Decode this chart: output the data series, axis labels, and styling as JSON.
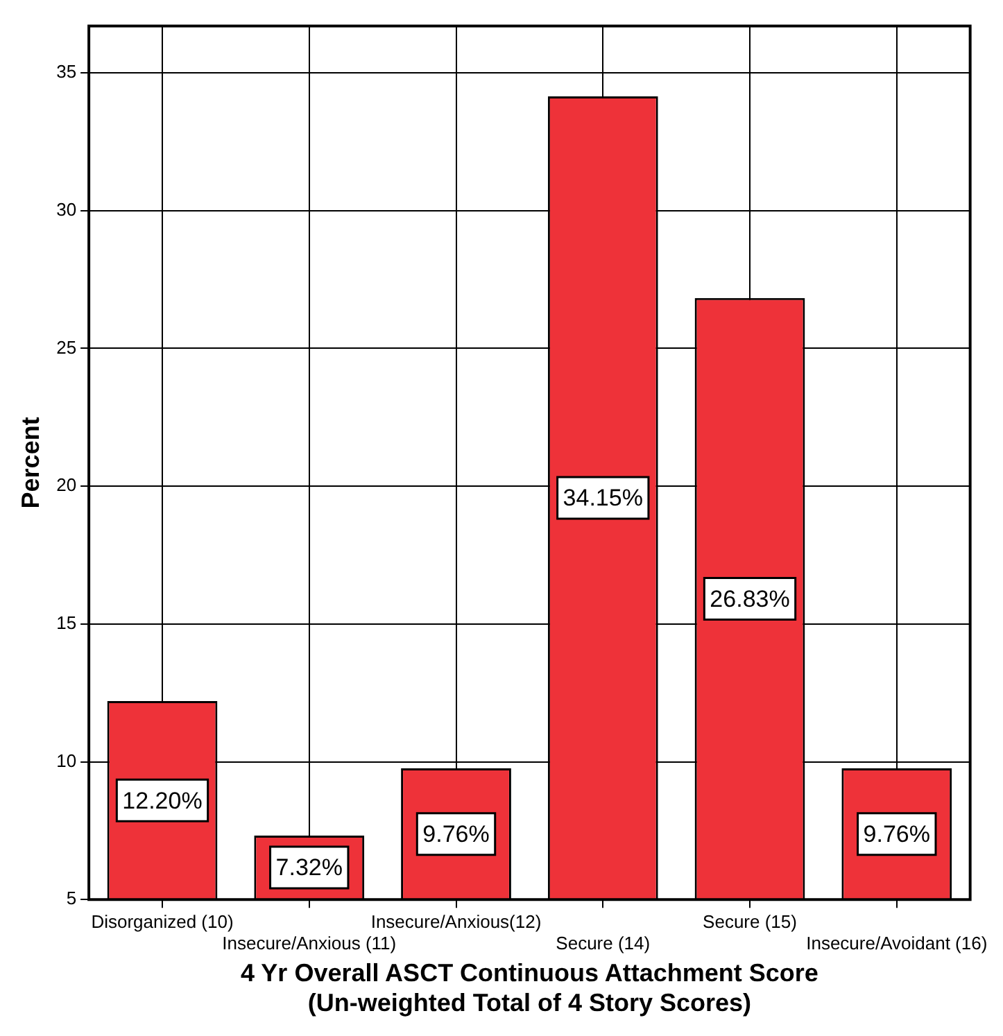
{
  "chart_data": {
    "type": "bar",
    "xlabel": "4 Yr Overall ASCT Continuous Attachment Score\n(Un-weighted Total of 4 Story Scores)",
    "ylabel": "Percent",
    "categories": [
      "Disorganized (10)",
      "Insecure/Anxious (11)",
      "Insecure/Anxious(12)",
      "Secure (14)",
      "Secure (15)",
      "Insecure/Avoidant (16)"
    ],
    "values": [
      12.2,
      7.32,
      9.76,
      34.15,
      26.83,
      9.76
    ],
    "value_labels": [
      "12.20%",
      "7.32%",
      "9.76%",
      "34.15%",
      "26.83%",
      "9.76%"
    ],
    "color": "#ee3239",
    "ylim": [
      5,
      36.7
    ],
    "yticks": [
      5,
      10,
      15,
      20,
      25,
      30,
      35
    ],
    "grid": true
  }
}
